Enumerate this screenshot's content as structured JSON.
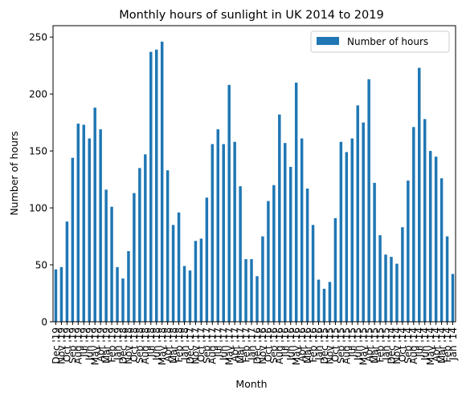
{
  "chart_data": {
    "type": "bar",
    "title": "Monthly hours of sunlight in UK 2014 to 2019",
    "xlabel": "Month",
    "ylabel": "Number of hours",
    "ylim": [
      0,
      260
    ],
    "yticks": [
      0,
      50,
      100,
      150,
      200,
      250
    ],
    "legend": "top-right",
    "grid": false,
    "color": "#1f77b4",
    "categories": [
      "Dec '19",
      "Nov '19",
      "Oct '19",
      "Sep '19",
      "Aug '19",
      "Jul '19",
      "Jun '19",
      "May '19",
      "Apr '19",
      "Mar '19",
      "Feb '19",
      "Jan '19",
      "Dec '18",
      "Nov '18",
      "Oct '18",
      "Sep '18",
      "Aug '18",
      "Jul '18",
      "Jun '18",
      "May '18",
      "Apr '18",
      "Mar '18",
      "Feb '18",
      "Jan '18",
      "Dec '17",
      "Nov '17",
      "Oct '17",
      "Sep '17",
      "Aug '17",
      "Jul '17",
      "Jun '17",
      "May '17",
      "Apr '17",
      "Mar '17",
      "Feb '17",
      "Jan '17",
      "Dec '16",
      "Nov '16",
      "Oct '16",
      "Sep '16",
      "Aug '16",
      "Jul '16",
      "Jun '16",
      "May '16",
      "Apr '16",
      "Mar '16",
      "Feb '16",
      "Jan '16",
      "Dec '15",
      "Nov '15",
      "Oct '15",
      "Sep '15",
      "Aug '15",
      "Jul '15",
      "Jun '15",
      "May '15",
      "Apr '15",
      "Mar '15",
      "Feb '15",
      "Jan '15",
      "Dec '14",
      "Nov '14",
      "Oct '14",
      "Sep '14",
      "Aug '14",
      "Jul '14",
      "Jun '14",
      "May '14",
      "Apr '14",
      "Mar '14",
      "Feb '14",
      "Jan '14"
    ],
    "series": [
      {
        "name": "Number of hours",
        "values": [
          46,
          48,
          88,
          144,
          174,
          173,
          161,
          188,
          169,
          116,
          101,
          48,
          38,
          62,
          113,
          135,
          147,
          237,
          239,
          246,
          133,
          85,
          96,
          49,
          45,
          71,
          73,
          109,
          156,
          169,
          156,
          208,
          158,
          119,
          55,
          55,
          40,
          75,
          106,
          120,
          182,
          157,
          136,
          210,
          161,
          117,
          85,
          37,
          29,
          35,
          91,
          158,
          149,
          161,
          190,
          175,
          213,
          122,
          76,
          59,
          57,
          51,
          83,
          124,
          171,
          223,
          178,
          150,
          145,
          126,
          75,
          42
        ]
      }
    ]
  }
}
